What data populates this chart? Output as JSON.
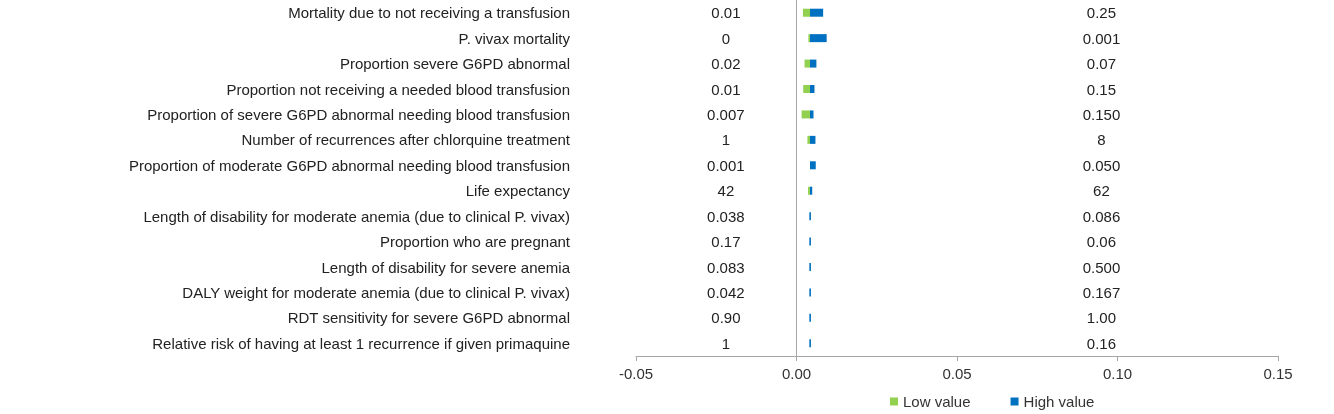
{
  "chart_data": {
    "type": "bar",
    "orientation": "horizontal",
    "categories": [
      "Mortality due to not receiving a transfusion",
      "P. vivax mortality",
      "Proportion severe G6PD abnormal",
      "Proportion not receiving a needed blood transfusion",
      "Proportion of severe G6PD abnormal needing blood transfusion",
      "Number of recurrences after chlorquine treatment",
      "Proportion of moderate G6PD abnormal needing blood transfusion",
      "Life expectancy",
      "Length of disability for moderate anemia (due to clinical P. vivax)",
      "Proportion who are pregnant",
      "Length of disability for severe anemia",
      "DALY weight for moderate anemia (due to clinical P. vivax)",
      "RDT sensitivity for severe G6PD abnormal",
      "Relative risk of having at least 1 recurrence if given primaquine"
    ],
    "series": [
      {
        "name": "Low value",
        "color": "#92d050",
        "base": [
          0.002,
          0.0037,
          0.0025,
          0.0021,
          0.0016,
          0.0034,
          null,
          0.0036,
          null,
          null,
          null,
          null,
          null,
          null
        ],
        "values": [
          0.0022,
          0.0005,
          0.0017,
          0.0021,
          0.0026,
          0.0008,
          null,
          0.0006,
          null,
          null,
          null,
          null,
          null,
          null
        ]
      },
      {
        "name": "High value",
        "color": "#0070c0",
        "base": [
          0.0042,
          0.0042,
          0.0042,
          0.0042,
          0.0042,
          0.0042,
          0.0042,
          0.0042,
          0.004,
          0.004,
          0.004,
          0.004,
          0.004,
          0.004
        ],
        "values": [
          0.0041,
          0.0052,
          0.002,
          0.0014,
          0.0011,
          0.0017,
          0.0018,
          0.0007,
          0.0005,
          0.0005,
          0.0005,
          0.0005,
          0.0005,
          0.0005
        ]
      }
    ],
    "xlim": [
      -0.05,
      0.15
    ],
    "xticks": [
      {
        "value": -0.05,
        "label": "-0.05"
      },
      {
        "value": 0,
        "label": "0.00"
      },
      {
        "value": 0.05,
        "label": "0.05"
      },
      {
        "value": 0.1,
        "label": "0.10"
      },
      {
        "value": 0.15,
        "label": "0.15"
      }
    ],
    "legend": "bottom",
    "annotations": [
      "0.01",
      "0",
      "0.02",
      "0.01",
      "0.007",
      "1",
      "0.001",
      "42",
      "0.038",
      "0.17",
      "0.083",
      "0.042",
      "0.90",
      "1",
      "0.25",
      "0.001",
      "0.07",
      "0.15",
      "0.150",
      "8",
      "0.050",
      "62",
      "0.086",
      "0.06",
      "0.500",
      "0.167",
      "1.00",
      "0.16"
    ]
  }
}
